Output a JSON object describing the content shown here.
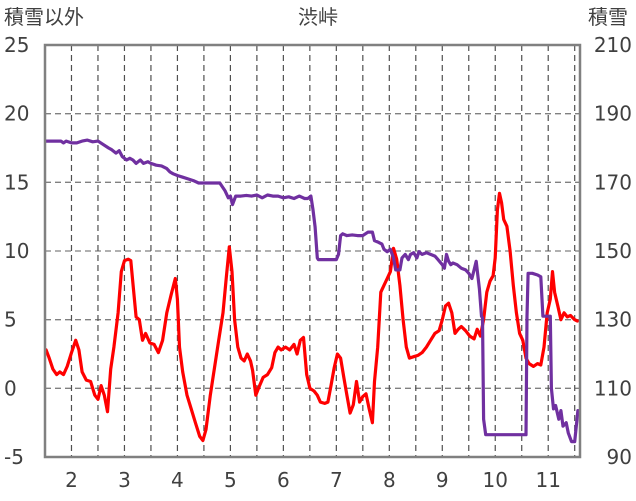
{
  "chart_data": {
    "type": "line",
    "title": "渋峠",
    "left_axis_label": "積雪以外",
    "right_axis_label": "積雪",
    "x_ticks": [
      "2",
      "3",
      "4",
      "5",
      "6",
      "7",
      "8",
      "9",
      "10",
      "11"
    ],
    "x_range": [
      1.5,
      11.6
    ],
    "left_ylim": [
      -5,
      25
    ],
    "left_yticks": [
      "-5",
      "0",
      "5",
      "10",
      "15",
      "20",
      "25"
    ],
    "right_ylim": [
      90,
      210
    ],
    "right_yticks": [
      "90",
      "110",
      "130",
      "150",
      "170",
      "190",
      "210"
    ],
    "grid": {
      "vertical_dashed_at": [
        2,
        2.5,
        3,
        3.5,
        4,
        4.5,
        5,
        5.5,
        6,
        6.5,
        7,
        7.5,
        8,
        8.5,
        9,
        9.5,
        10,
        10.5,
        11,
        11.5
      ],
      "horizontal_dashed": true
    },
    "series": [
      {
        "axis": "left",
        "color": "#ff0000",
        "points": [
          [
            1.52,
            2.8
          ],
          [
            1.58,
            2.2
          ],
          [
            1.65,
            1.4
          ],
          [
            1.72,
            1.0
          ],
          [
            1.78,
            1.2
          ],
          [
            1.85,
            1.0
          ],
          [
            1.92,
            1.6
          ],
          [
            2.0,
            2.6
          ],
          [
            2.08,
            3.5
          ],
          [
            2.14,
            2.8
          ],
          [
            2.2,
            1.2
          ],
          [
            2.28,
            0.6
          ],
          [
            2.36,
            0.5
          ],
          [
            2.44,
            -0.5
          ],
          [
            2.5,
            -0.8
          ],
          [
            2.56,
            0.2
          ],
          [
            2.62,
            -0.5
          ],
          [
            2.68,
            -1.7
          ],
          [
            2.74,
            1.4
          ],
          [
            2.8,
            3.0
          ],
          [
            2.88,
            5.5
          ],
          [
            2.94,
            8.5
          ],
          [
            3.0,
            9.3
          ],
          [
            3.07,
            9.4
          ],
          [
            3.12,
            9.3
          ],
          [
            3.17,
            7.2
          ],
          [
            3.22,
            5.2
          ],
          [
            3.28,
            5.0
          ],
          [
            3.34,
            3.5
          ],
          [
            3.4,
            4.0
          ],
          [
            3.48,
            3.3
          ],
          [
            3.56,
            3.2
          ],
          [
            3.64,
            2.6
          ],
          [
            3.72,
            3.5
          ],
          [
            3.8,
            5.5
          ],
          [
            3.88,
            6.8
          ],
          [
            3.96,
            8.0
          ],
          [
            4.0,
            6.5
          ],
          [
            4.04,
            3.0
          ],
          [
            4.1,
            1.2
          ],
          [
            4.18,
            -0.5
          ],
          [
            4.26,
            -1.5
          ],
          [
            4.34,
            -2.5
          ],
          [
            4.42,
            -3.5
          ],
          [
            4.48,
            -3.8
          ],
          [
            4.54,
            -3.0
          ],
          [
            4.62,
            -0.5
          ],
          [
            4.7,
            1.5
          ],
          [
            4.78,
            3.5
          ],
          [
            4.86,
            5.5
          ],
          [
            4.92,
            8.0
          ],
          [
            4.98,
            10.3
          ],
          [
            5.03,
            8.5
          ],
          [
            5.08,
            5.0
          ],
          [
            5.14,
            3.0
          ],
          [
            5.2,
            2.2
          ],
          [
            5.26,
            2.0
          ],
          [
            5.32,
            2.5
          ],
          [
            5.38,
            2.0
          ],
          [
            5.42,
            1.3
          ],
          [
            5.48,
            -0.5
          ],
          [
            5.54,
            0.1
          ],
          [
            5.62,
            0.8
          ],
          [
            5.7,
            1.0
          ],
          [
            5.78,
            1.5
          ],
          [
            5.84,
            2.6
          ],
          [
            5.9,
            3.0
          ],
          [
            5.96,
            2.8
          ],
          [
            6.04,
            3.0
          ],
          [
            6.12,
            2.8
          ],
          [
            6.2,
            3.2
          ],
          [
            6.26,
            2.5
          ],
          [
            6.32,
            3.5
          ],
          [
            6.38,
            3.7
          ],
          [
            6.44,
            1.0
          ],
          [
            6.5,
            0.0
          ],
          [
            6.58,
            -0.2
          ],
          [
            6.64,
            -0.5
          ],
          [
            6.7,
            -1.0
          ],
          [
            6.78,
            -1.1
          ],
          [
            6.84,
            -1.0
          ],
          [
            6.9,
            0.2
          ],
          [
            6.96,
            1.5
          ],
          [
            7.02,
            2.5
          ],
          [
            7.08,
            2.2
          ],
          [
            7.14,
            0.8
          ],
          [
            7.2,
            -0.5
          ],
          [
            7.26,
            -1.8
          ],
          [
            7.32,
            -1.2
          ],
          [
            7.38,
            0.5
          ],
          [
            7.44,
            -1.0
          ],
          [
            7.5,
            -0.6
          ],
          [
            7.56,
            -0.4
          ],
          [
            7.62,
            -1.5
          ],
          [
            7.68,
            -2.5
          ],
          [
            7.72,
            0.5
          ],
          [
            7.78,
            3.0
          ],
          [
            7.84,
            7.0
          ],
          [
            7.9,
            7.5
          ],
          [
            7.96,
            8.0
          ],
          [
            8.02,
            8.5
          ],
          [
            8.08,
            10.2
          ],
          [
            8.14,
            9.4
          ],
          [
            8.2,
            7.5
          ],
          [
            8.26,
            5.0
          ],
          [
            8.32,
            3.0
          ],
          [
            8.38,
            2.2
          ],
          [
            8.46,
            2.3
          ],
          [
            8.54,
            2.4
          ],
          [
            8.62,
            2.6
          ],
          [
            8.7,
            3.0
          ],
          [
            8.78,
            3.5
          ],
          [
            8.86,
            4.0
          ],
          [
            8.94,
            4.2
          ],
          [
            9.0,
            5.0
          ],
          [
            9.06,
            6.0
          ],
          [
            9.12,
            6.2
          ],
          [
            9.18,
            5.5
          ],
          [
            9.24,
            4.0
          ],
          [
            9.3,
            4.3
          ],
          [
            9.36,
            4.5
          ],
          [
            9.44,
            4.2
          ],
          [
            9.52,
            3.8
          ],
          [
            9.6,
            3.6
          ],
          [
            9.66,
            4.3
          ],
          [
            9.72,
            3.8
          ],
          [
            9.78,
            5.0
          ],
          [
            9.84,
            7.0
          ],
          [
            9.9,
            7.8
          ],
          [
            9.96,
            8.2
          ],
          [
            10.0,
            9.5
          ],
          [
            10.04,
            13.0
          ],
          [
            10.08,
            14.2
          ],
          [
            10.12,
            13.5
          ],
          [
            10.16,
            12.3
          ],
          [
            10.22,
            11.8
          ],
          [
            10.28,
            10.0
          ],
          [
            10.34,
            7.5
          ],
          [
            10.4,
            5.5
          ],
          [
            10.46,
            4.0
          ],
          [
            10.52,
            3.5
          ],
          [
            10.58,
            2.2
          ],
          [
            10.64,
            1.8
          ],
          [
            10.72,
            1.6
          ],
          [
            10.8,
            1.8
          ],
          [
            10.86,
            1.7
          ],
          [
            10.92,
            3.0
          ],
          [
            10.98,
            5.5
          ],
          [
            11.04,
            6.5
          ],
          [
            11.08,
            8.5
          ],
          [
            11.12,
            7.0
          ],
          [
            11.18,
            6.0
          ],
          [
            11.24,
            5.0
          ],
          [
            11.3,
            5.5
          ],
          [
            11.36,
            5.2
          ],
          [
            11.42,
            5.3
          ],
          [
            11.5,
            5.0
          ],
          [
            11.55,
            4.9
          ]
        ]
      },
      {
        "axis": "right",
        "color": "#7030a0",
        "points": [
          [
            1.52,
            182
          ],
          [
            1.8,
            182
          ],
          [
            1.85,
            181.5
          ],
          [
            1.9,
            182
          ],
          [
            2.0,
            181.5
          ],
          [
            2.1,
            181.5
          ],
          [
            2.2,
            182
          ],
          [
            2.3,
            182.3
          ],
          [
            2.4,
            181.8
          ],
          [
            2.5,
            182
          ],
          [
            2.6,
            181
          ],
          [
            2.7,
            180
          ],
          [
            2.76,
            179.5
          ],
          [
            2.84,
            178.5
          ],
          [
            2.9,
            179.2
          ],
          [
            2.96,
            177.5
          ],
          [
            3.04,
            176.5
          ],
          [
            3.1,
            177
          ],
          [
            3.16,
            176.5
          ],
          [
            3.22,
            175.5
          ],
          [
            3.3,
            176.5
          ],
          [
            3.36,
            175.5
          ],
          [
            3.44,
            176
          ],
          [
            3.5,
            175.5
          ],
          [
            3.6,
            175
          ],
          [
            3.7,
            174.8
          ],
          [
            3.8,
            174
          ],
          [
            3.86,
            173
          ],
          [
            3.92,
            172.5
          ],
          [
            4.0,
            172
          ],
          [
            4.1,
            171.5
          ],
          [
            4.2,
            171
          ],
          [
            4.3,
            170.5
          ],
          [
            4.4,
            169.8
          ],
          [
            4.5,
            169.8
          ],
          [
            4.6,
            169.8
          ],
          [
            4.8,
            169.8
          ],
          [
            4.9,
            167.5
          ],
          [
            4.96,
            165.5
          ],
          [
            5.0,
            166
          ],
          [
            5.04,
            163.5
          ],
          [
            5.1,
            166
          ],
          [
            5.2,
            166
          ],
          [
            5.3,
            166.2
          ],
          [
            5.4,
            166
          ],
          [
            5.5,
            166.3
          ],
          [
            5.6,
            165.5
          ],
          [
            5.7,
            166.3
          ],
          [
            5.8,
            166
          ],
          [
            5.9,
            166
          ],
          [
            6.0,
            165.5
          ],
          [
            6.1,
            165.8
          ],
          [
            6.2,
            165.3
          ],
          [
            6.3,
            166
          ],
          [
            6.4,
            165.3
          ],
          [
            6.46,
            165.3
          ],
          [
            6.52,
            166
          ],
          [
            6.56,
            162
          ],
          [
            6.6,
            157
          ],
          [
            6.64,
            148
          ],
          [
            6.66,
            147.5
          ],
          [
            7.0,
            147.5
          ],
          [
            7.04,
            149
          ],
          [
            7.08,
            154.5
          ],
          [
            7.12,
            155
          ],
          [
            7.2,
            154.5
          ],
          [
            7.3,
            154.7
          ],
          [
            7.4,
            154.5
          ],
          [
            7.5,
            154.5
          ],
          [
            7.6,
            155.5
          ],
          [
            7.68,
            155.5
          ],
          [
            7.72,
            153
          ],
          [
            7.8,
            152.5
          ],
          [
            7.86,
            152
          ],
          [
            7.9,
            150.5
          ],
          [
            7.96,
            149.8
          ],
          [
            8.02,
            150.5
          ],
          [
            8.08,
            148
          ],
          [
            8.12,
            144.5
          ],
          [
            8.2,
            144.5
          ],
          [
            8.24,
            148
          ],
          [
            8.3,
            149
          ],
          [
            8.36,
            147.5
          ],
          [
            8.4,
            149
          ],
          [
            8.46,
            149.5
          ],
          [
            8.52,
            148
          ],
          [
            8.56,
            149.8
          ],
          [
            8.62,
            149
          ],
          [
            8.7,
            149.5
          ],
          [
            8.78,
            149
          ],
          [
            8.86,
            148.5
          ],
          [
            8.92,
            147.5
          ],
          [
            9.0,
            146
          ],
          [
            9.04,
            145
          ],
          [
            9.08,
            149
          ],
          [
            9.12,
            147
          ],
          [
            9.16,
            146
          ],
          [
            9.2,
            146.5
          ],
          [
            9.28,
            146
          ],
          [
            9.36,
            145
          ],
          [
            9.44,
            144.5
          ],
          [
            9.5,
            143.5
          ],
          [
            9.56,
            142
          ],
          [
            9.6,
            144.5
          ],
          [
            9.64,
            147
          ],
          [
            9.7,
            139
          ],
          [
            9.74,
            131
          ],
          [
            9.76,
            130.5
          ],
          [
            9.78,
            101
          ],
          [
            9.82,
            96.5
          ],
          [
            10.58,
            96.5
          ],
          [
            10.6,
            131
          ],
          [
            10.62,
            143.5
          ],
          [
            10.7,
            143.5
          ],
          [
            10.8,
            143
          ],
          [
            10.86,
            142.5
          ],
          [
            10.9,
            131
          ],
          [
            11.0,
            131
          ],
          [
            11.04,
            131
          ],
          [
            11.06,
            110
          ],
          [
            11.1,
            104
          ],
          [
            11.14,
            105
          ],
          [
            11.2,
            101
          ],
          [
            11.24,
            103.5
          ],
          [
            11.28,
            99
          ],
          [
            11.34,
            100
          ],
          [
            11.38,
            97
          ],
          [
            11.44,
            94.5
          ],
          [
            11.5,
            94.5
          ],
          [
            11.56,
            103.5
          ]
        ]
      }
    ]
  }
}
